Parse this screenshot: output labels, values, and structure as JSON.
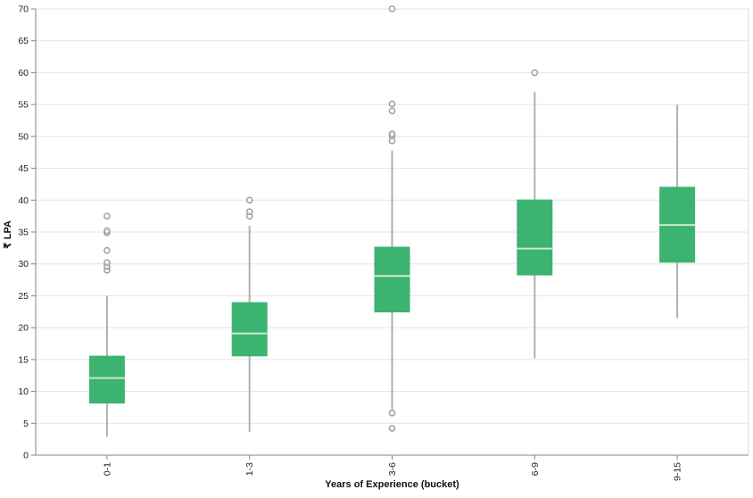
{
  "colors": {
    "box_fill": "#3cb371",
    "median_line": "#c9e8d4",
    "whisker": "#b0b0b0",
    "outlier_stroke": "#9a9a9a",
    "gridline": "#e3e3e3",
    "plot_border": "#dcdcdc",
    "axis_line": "#848484",
    "tick_label": "#222222",
    "background": "#ffffff"
  },
  "chart_data": {
    "type": "box",
    "title": "",
    "xlabel": "Years of Experience (bucket)",
    "ylabel": "₹ LPA",
    "ylim": [
      0,
      70
    ],
    "y_ticks": [
      0,
      5,
      10,
      15,
      20,
      25,
      30,
      35,
      40,
      45,
      50,
      55,
      60,
      65,
      70
    ],
    "grid": "horizontal",
    "legend": "none",
    "categories": [
      "0-1",
      "1-3",
      "3-6",
      "6-9",
      "9-15"
    ],
    "boxes": [
      {
        "category": "0-1",
        "low": 2.9,
        "q1": 8.1,
        "median": 12.1,
        "q3": 15.6,
        "high": 25.0,
        "outliers": [
          29.0,
          29.6,
          30.2,
          32.1,
          34.9,
          35.2,
          37.5
        ]
      },
      {
        "category": "1-3",
        "low": 3.6,
        "q1": 15.5,
        "median": 19.1,
        "q3": 24.0,
        "high": 36.0,
        "outliers": [
          37.5,
          38.2,
          40.0
        ]
      },
      {
        "category": "3-6",
        "low": 7.2,
        "q1": 22.4,
        "median": 28.1,
        "q3": 32.7,
        "high": 47.8,
        "outliers": [
          4.2,
          6.6,
          49.3,
          50.1,
          50.4,
          54.0,
          55.1,
          70.0
        ]
      },
      {
        "category": "6-9",
        "low": 15.2,
        "q1": 28.2,
        "median": 32.4,
        "q3": 40.1,
        "high": 57.0,
        "outliers": [
          60.0
        ]
      },
      {
        "category": "9-15",
        "low": 21.5,
        "q1": 30.2,
        "median": 36.1,
        "q3": 42.1,
        "high": 55.0,
        "outliers": []
      }
    ]
  }
}
